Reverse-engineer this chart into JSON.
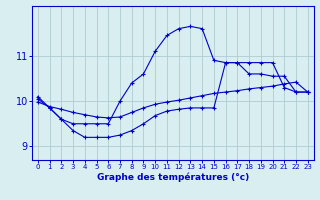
{
  "xlabel": "Graphe des températures (°c)",
  "line_color": "#0000cc",
  "bg_color": "#d8eef0",
  "grid_color": "#b0ccd0",
  "axis_color": "#0000cc",
  "ylim": [
    8.7,
    12.1
  ],
  "yticks": [
    9,
    10,
    11
  ],
  "xticks": [
    0,
    1,
    2,
    3,
    4,
    5,
    6,
    7,
    8,
    9,
    10,
    11,
    12,
    13,
    14,
    15,
    16,
    17,
    18,
    19,
    20,
    21,
    22,
    23
  ],
  "top_y": [
    10.1,
    9.85,
    9.6,
    9.5,
    9.5,
    9.5,
    9.5,
    10.0,
    10.4,
    10.6,
    11.1,
    11.45,
    11.6,
    11.65,
    11.6,
    10.9,
    10.85,
    10.85,
    10.6,
    10.6,
    10.55,
    10.55,
    10.2,
    10.2
  ],
  "mid_y": [
    9.98,
    9.88,
    9.82,
    9.75,
    9.7,
    9.65,
    9.63,
    9.65,
    9.75,
    9.85,
    9.93,
    9.98,
    10.02,
    10.07,
    10.12,
    10.17,
    10.2,
    10.23,
    10.27,
    10.3,
    10.33,
    10.38,
    10.42,
    10.2
  ],
  "bot_y": [
    10.05,
    9.85,
    9.6,
    9.35,
    9.2,
    9.2,
    9.2,
    9.25,
    9.35,
    9.5,
    9.68,
    9.78,
    9.82,
    9.85,
    9.85,
    9.85,
    10.85,
    10.85,
    10.85,
    10.85,
    10.85,
    10.3,
    10.2,
    10.2
  ]
}
